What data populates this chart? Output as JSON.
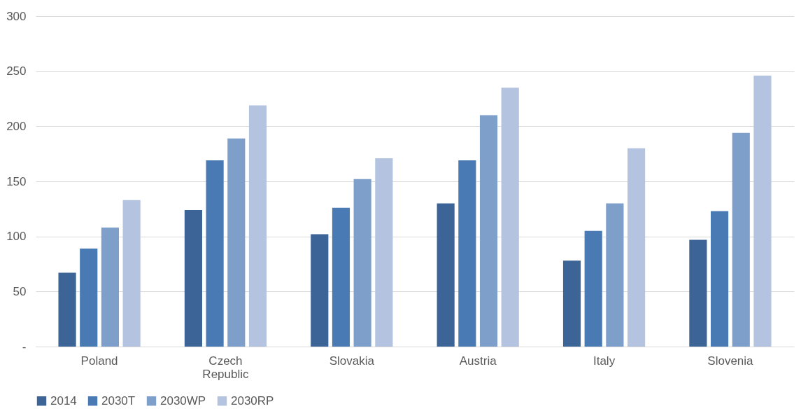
{
  "chart_data": {
    "type": "bar",
    "categories": [
      "Poland",
      "Czech Republic",
      "Slovakia",
      "Austria",
      "Italy",
      "Slovenia"
    ],
    "series": [
      {
        "name": "2014",
        "color": "#3c6496",
        "values": [
          67,
          124,
          102,
          130,
          78,
          97
        ]
      },
      {
        "name": "2030T",
        "color": "#4a7ab4",
        "values": [
          89,
          169,
          126,
          169,
          105,
          123
        ]
      },
      {
        "name": "2030WP",
        "color": "#7f9fcb",
        "values": [
          108,
          189,
          152,
          210,
          130,
          194
        ]
      },
      {
        "name": "2030RP",
        "color": "#b4c4e0",
        "values": [
          133,
          219,
          171,
          235,
          180,
          246
        ]
      }
    ],
    "ylim": [
      0,
      300
    ],
    "yticks": [
      {
        "value": 0,
        "label": "-"
      },
      50,
      100,
      150,
      200,
      250,
      300
    ],
    "grid": "y",
    "legend": "bottom"
  }
}
